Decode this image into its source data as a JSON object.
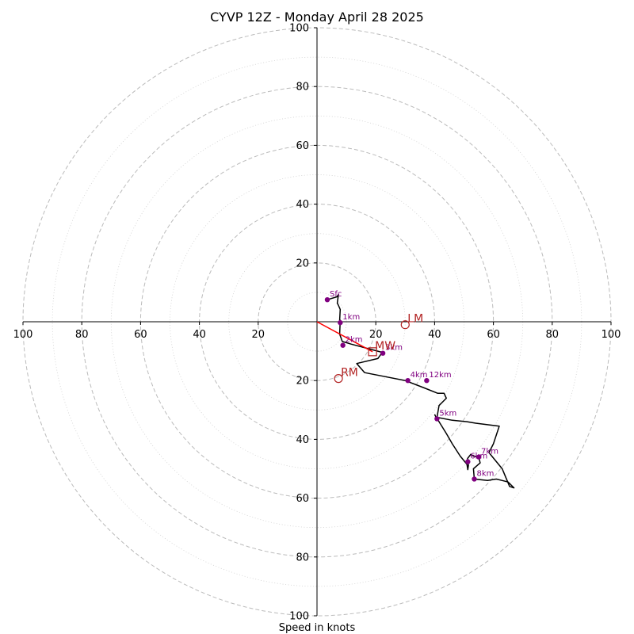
{
  "chart_data": {
    "type": "scatter",
    "subtype": "hodograph",
    "title": "CYVP 12Z - Monday April 28 2025",
    "xlabel": "Speed in knots",
    "ylabel": "",
    "xlim": [
      -100,
      100
    ],
    "ylim": [
      -100,
      100
    ],
    "ring_step_major": 20,
    "ring_step_minor": 10,
    "grid": true,
    "tick_labels": {
      "x": [
        "100",
        "80",
        "60",
        "40",
        "20",
        "20",
        "40",
        "60",
        "80",
        "100"
      ],
      "y_top": [
        "20",
        "40",
        "60",
        "80",
        "100"
      ],
      "y_bottom": [
        "20",
        "40",
        "60",
        "80",
        "100"
      ]
    },
    "colors": {
      "trace": "#000000",
      "markers": "#800080",
      "motion": "#b22222",
      "shear_vector": "#ff0000",
      "grid": "#bbbbbb"
    },
    "trace": [
      [
        3.5,
        7.5
      ],
      [
        6.8,
        8.5
      ],
      [
        7.3,
        9.3
      ],
      [
        7.1,
        7.8
      ],
      [
        6.9,
        6.3
      ],
      [
        7.2,
        5.8
      ],
      [
        7.9,
        4.2
      ],
      [
        7.7,
        0.6
      ],
      [
        7.9,
        0.5
      ],
      [
        7.7,
        -4.2
      ],
      [
        8.6,
        -6.7
      ],
      [
        11.6,
        -7.6
      ],
      [
        18.0,
        -9.3
      ],
      [
        22.2,
        -10.4
      ],
      [
        20.7,
        -12.5
      ],
      [
        13.5,
        -14.2
      ],
      [
        16.2,
        -17.3
      ],
      [
        30.0,
        -20.0
      ],
      [
        36.5,
        -22.5
      ],
      [
        41.0,
        -24.3
      ],
      [
        43.2,
        -24.3
      ],
      [
        44.0,
        -26.0
      ],
      [
        41.5,
        -28.5
      ],
      [
        40.8,
        -32.5
      ],
      [
        46.0,
        -33.5
      ],
      [
        51.0,
        -34.0
      ],
      [
        54.0,
        -34.5
      ],
      [
        62.0,
        -35.5
      ],
      [
        60.0,
        -41.5
      ],
      [
        58.5,
        -44.5
      ],
      [
        63.0,
        -50.0
      ],
      [
        65.5,
        -56.0
      ],
      [
        67.0,
        -56.5
      ],
      [
        65.0,
        -54.5
      ],
      [
        63.0,
        -54.0
      ],
      [
        61.0,
        -53.5
      ],
      [
        58.0,
        -54.0
      ],
      [
        53.5,
        -53.5
      ],
      [
        53.2,
        -50.0
      ],
      [
        55.5,
        -48.0
      ],
      [
        55.0,
        -46.0
      ],
      [
        53.2,
        -45.7
      ],
      [
        52.3,
        -45.1
      ],
      [
        51.2,
        -46.5
      ],
      [
        51.5,
        -48.8
      ],
      [
        51.3,
        -50.3
      ],
      [
        51.0,
        -48.5
      ],
      [
        48.7,
        -45.7
      ],
      [
        46.0,
        -41.5
      ],
      [
        44.0,
        -38.0
      ],
      [
        41.5,
        -34.0
      ],
      [
        40.5,
        -32.5
      ],
      [
        40.0,
        -31.5
      ]
    ],
    "height_markers": [
      {
        "label": "Sfc",
        "u": 3.5,
        "v": 7.5
      },
      {
        "label": "1km",
        "u": 7.9,
        "v": -0.3
      },
      {
        "label": "2km",
        "u": 8.8,
        "v": -8.0
      },
      {
        "label": "3km",
        "u": 22.4,
        "v": -10.7
      },
      {
        "label": "4km",
        "u": 30.9,
        "v": -20.0
      },
      {
        "label": "5km",
        "u": 40.8,
        "v": -33.0
      },
      {
        "label": "6km",
        "u": 51.3,
        "v": -47.6
      },
      {
        "label": "7km",
        "u": 55.0,
        "v": -46.0
      },
      {
        "label": "8km",
        "u": 53.5,
        "v": -53.5
      },
      {
        "label": "12km",
        "u": 37.3,
        "v": -20.0
      }
    ],
    "storm_motions": [
      {
        "label": "LM",
        "u": 30.0,
        "v": -1.0,
        "shape": "circle"
      },
      {
        "label": "RM",
        "u": 7.3,
        "v": -19.3,
        "shape": "circle"
      },
      {
        "label": "MW",
        "u": 18.9,
        "v": -10.2,
        "shape": "square"
      }
    ],
    "shear_vector": {
      "from": [
        0,
        0
      ],
      "to": [
        18.9,
        -10.2
      ]
    }
  }
}
